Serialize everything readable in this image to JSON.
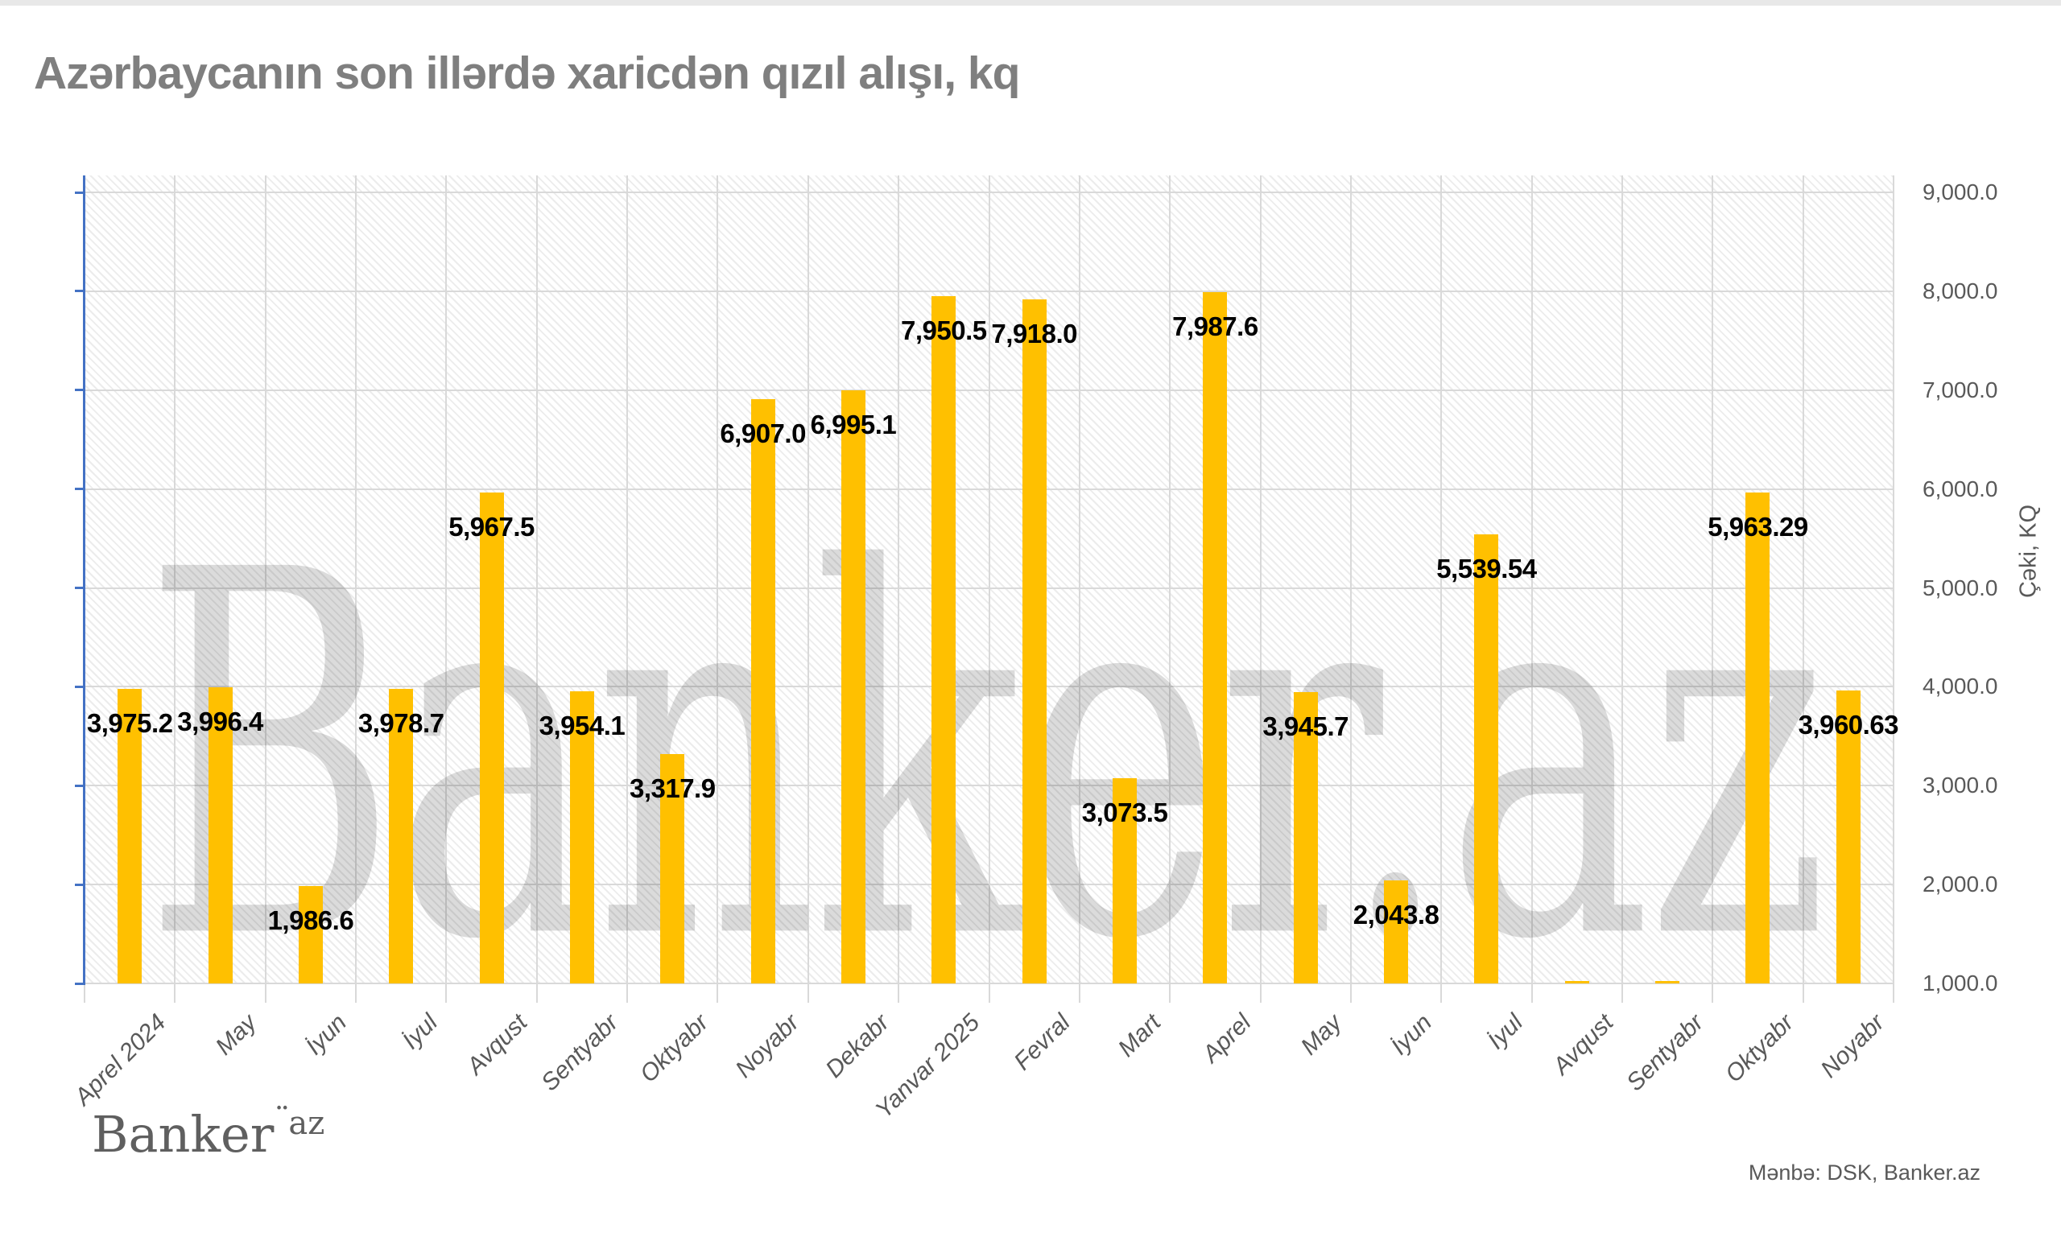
{
  "title": "Azərbaycanın son illərdə xaricdən qızıl alışı, kq",
  "watermark": "Banker.az",
  "footer_logo": {
    "main": "Banker",
    "dots": "¨",
    "sup": "az"
  },
  "source": "Mənbə: DSK, Banker.az",
  "colors": {
    "bar": "#FFC000",
    "axis_line": "#4472C4",
    "gridline": "#D9D9D9",
    "data_label": "#000000",
    "tick_text": "#595959",
    "title_text": "#7F7F7F"
  },
  "chart_data": {
    "type": "bar",
    "title": "Azərbaycanın son illərdə xaricdən qızıl alışı, kq",
    "ylabel": "Çəki, KQ",
    "xlabel": "",
    "ylim": [
      1000,
      9000
    ],
    "ytick_step": 1000,
    "ytick_labels": [
      "9,000.0",
      "8,000.0",
      "7,000.0",
      "6,000.0",
      "5,000.0",
      "4,000.0",
      "3,000.0",
      "2,000.0",
      "1,000.0"
    ],
    "grid": true,
    "legend": false,
    "categories": [
      "Aprel 2024",
      "May",
      "İyun",
      "İyul",
      "Avqust",
      "Sentyabr",
      "Oktyabr",
      "Noyabr",
      "Dekabr",
      "Yanvar 2025",
      "Fevral",
      "Mart",
      "Aprel",
      "May",
      "İyun",
      "İyul",
      "Avqust",
      "Sentyabr",
      "Oktyabr",
      "Noyabr"
    ],
    "values": [
      3975.2,
      3996.4,
      1986.6,
      3978.7,
      5967.5,
      3954.1,
      3317.9,
      6907.0,
      6995.1,
      7950.5,
      7918.0,
      3073.5,
      7987.6,
      3945.7,
      2043.8,
      5539.54,
      0,
      0,
      5963.29,
      3960.63
    ],
    "data_labels": [
      "3,975.2",
      "3,996.4",
      "1,986.6",
      "3,978.7",
      "5,967.5",
      "3,954.1",
      "3,317.9",
      "6,907.0",
      "6,995.1",
      "7,950.5",
      "7,918.0",
      "3,073.5",
      "7,987.6",
      "3,945.7",
      "2,043.8",
      "5,539.54",
      "",
      "",
      "5,963.29",
      "3,960.63"
    ]
  }
}
